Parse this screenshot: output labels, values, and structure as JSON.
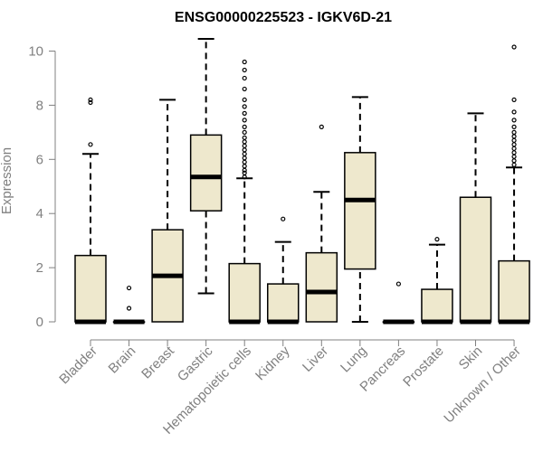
{
  "chart_data": {
    "type": "box",
    "title": "ENSG00000225523 - IGKV6D-21",
    "xlabel": "",
    "ylabel": "Expression",
    "ylim": [
      0,
      10.3
    ],
    "y_ticks": [
      0,
      2,
      4,
      6,
      8,
      10
    ],
    "y_tick_labels": [
      "0",
      "2",
      "4",
      "6",
      "8",
      "10"
    ],
    "grid": false,
    "legend": "none",
    "colors": {
      "box_fill": "#EEE8CD",
      "box_stroke": "#000000",
      "axis_text": "#808080",
      "title": "#000000"
    },
    "categories": [
      "Bladder",
      "Brain",
      "Breast",
      "Gastric",
      "Hematopoietic cells",
      "Kidney",
      "Liver",
      "Lung",
      "Pancreas",
      "Prostate",
      "Skin",
      "Unknown / Other"
    ],
    "boxes": [
      {
        "q1": 0,
        "median": 0,
        "q3": 2.45,
        "whisker_low": 0,
        "whisker_high": 6.2,
        "outliers": [
          6.55,
          8.1,
          8.2
        ]
      },
      {
        "q1": 0,
        "median": 0,
        "q3": 0,
        "whisker_low": 0,
        "whisker_high": 0,
        "outliers": [
          0.5,
          1.25
        ]
      },
      {
        "q1": 0,
        "median": 1.7,
        "q3": 3.4,
        "whisker_low": 0,
        "whisker_high": 8.2,
        "outliers": []
      },
      {
        "q1": 4.1,
        "median": 5.35,
        "q3": 6.9,
        "whisker_low": 1.05,
        "whisker_high": 10.45,
        "outliers": []
      },
      {
        "q1": 0,
        "median": 0,
        "q3": 2.15,
        "whisker_low": 0,
        "whisker_high": 5.3,
        "outliers": [
          5.35,
          5.5,
          5.6,
          5.75,
          5.9,
          6.05,
          6.2,
          6.35,
          6.5,
          6.65,
          6.8,
          7.0,
          7.2,
          7.45,
          7.7,
          7.95,
          8.2,
          8.6,
          9.0,
          9.3,
          9.6
        ]
      },
      {
        "q1": 0,
        "median": 0,
        "q3": 1.4,
        "whisker_low": 0,
        "whisker_high": 2.95,
        "outliers": [
          3.8
        ]
      },
      {
        "q1": 0,
        "median": 1.1,
        "q3": 2.55,
        "whisker_low": 0,
        "whisker_high": 4.8,
        "outliers": [
          7.2
        ]
      },
      {
        "q1": 1.95,
        "median": 4.5,
        "q3": 6.25,
        "whisker_low": 0,
        "whisker_high": 8.3,
        "outliers": []
      },
      {
        "q1": 0,
        "median": 0,
        "q3": 0,
        "whisker_low": 0,
        "whisker_high": 0,
        "outliers": [
          1.4
        ]
      },
      {
        "q1": 0,
        "median": 0,
        "q3": 1.2,
        "whisker_low": 0,
        "whisker_high": 2.85,
        "outliers": [
          3.05
        ]
      },
      {
        "q1": 0,
        "median": 0,
        "q3": 4.6,
        "whisker_low": 0,
        "whisker_high": 7.7,
        "outliers": []
      },
      {
        "q1": 0,
        "median": 0,
        "q3": 2.25,
        "whisker_low": 0,
        "whisker_high": 5.7,
        "outliers": [
          5.8,
          5.95,
          6.1,
          6.25,
          6.4,
          6.55,
          6.7,
          6.85,
          7.0,
          7.2,
          7.45,
          7.75,
          8.2,
          10.15
        ]
      }
    ]
  }
}
